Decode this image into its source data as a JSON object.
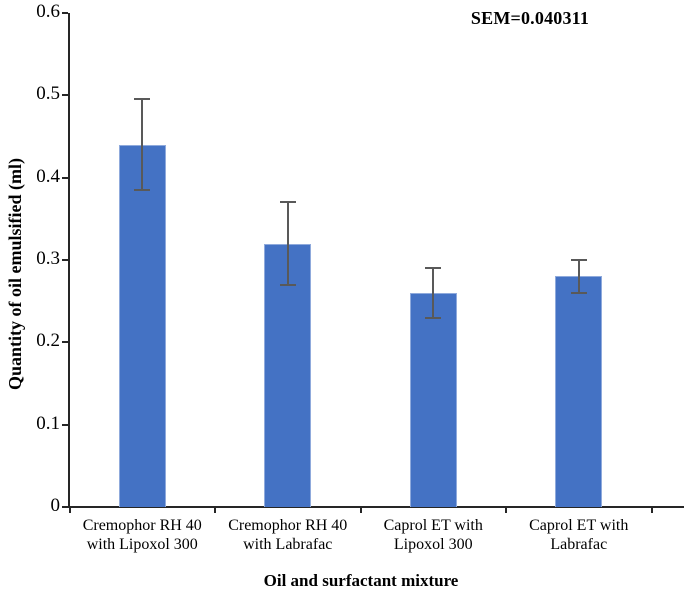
{
  "chart_data": {
    "type": "bar",
    "annotation": "SEM=0.040311",
    "xlabel": "Oil and surfactant mixture",
    "ylabel": "Quantity of oil emulsified (ml)",
    "categories": [
      "Cremophor RH 40 with Lipoxol 300",
      "Cremophor RH 40 with Labrafac",
      "Caprol ET with Lipoxol 300",
      "Caprol ET with Labrafac"
    ],
    "values": [
      0.44,
      0.32,
      0.26,
      0.28
    ],
    "error_plus": [
      0.055,
      0.05,
      0.03,
      0.02
    ],
    "error_minus": [
      0.055,
      0.05,
      0.03,
      0.02
    ],
    "ylim": [
      0,
      0.6
    ],
    "ytick_step": 0.1,
    "ytick_labels": [
      "0",
      "0.1",
      "0.2",
      "0.3",
      "0.4",
      "0.5",
      "0.6"
    ],
    "grid": false,
    "legend": "none",
    "colors": {
      "bar": "#4472C4",
      "bar_border": "#8FAADC",
      "error_bar": "#595959",
      "axis": "#262626"
    }
  }
}
